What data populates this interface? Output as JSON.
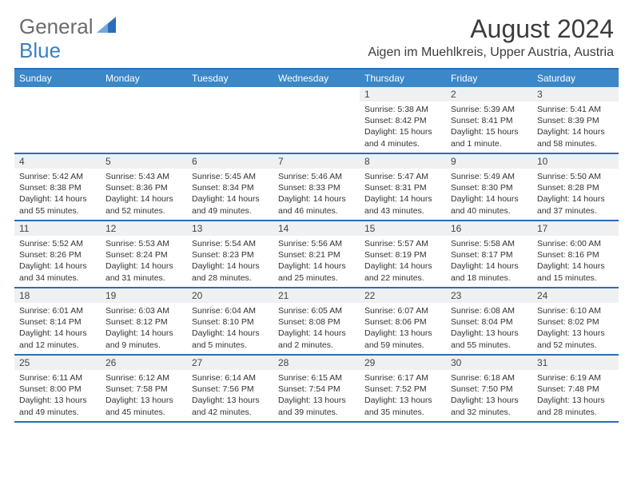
{
  "logo": {
    "text1": "General",
    "text2": "Blue",
    "color1": "#6a6d70",
    "color2": "#3b7fc4",
    "shape_color": "#2b6db8"
  },
  "title": "August 2024",
  "location": "Aigen im Muehlkreis, Upper Austria, Austria",
  "colors": {
    "header_bg": "#3b87c8",
    "header_text": "#ffffff",
    "border": "#2b6db8",
    "daynum_bg": "#eef0f2",
    "body_text": "#333333"
  },
  "days_of_week": [
    "Sunday",
    "Monday",
    "Tuesday",
    "Wednesday",
    "Thursday",
    "Friday",
    "Saturday"
  ],
  "weeks": [
    [
      {
        "n": "",
        "sunrise": "",
        "sunset": "",
        "daylight": ""
      },
      {
        "n": "",
        "sunrise": "",
        "sunset": "",
        "daylight": ""
      },
      {
        "n": "",
        "sunrise": "",
        "sunset": "",
        "daylight": ""
      },
      {
        "n": "",
        "sunrise": "",
        "sunset": "",
        "daylight": ""
      },
      {
        "n": "1",
        "sunrise": "Sunrise: 5:38 AM",
        "sunset": "Sunset: 8:42 PM",
        "daylight": "Daylight: 15 hours and 4 minutes."
      },
      {
        "n": "2",
        "sunrise": "Sunrise: 5:39 AM",
        "sunset": "Sunset: 8:41 PM",
        "daylight": "Daylight: 15 hours and 1 minute."
      },
      {
        "n": "3",
        "sunrise": "Sunrise: 5:41 AM",
        "sunset": "Sunset: 8:39 PM",
        "daylight": "Daylight: 14 hours and 58 minutes."
      }
    ],
    [
      {
        "n": "4",
        "sunrise": "Sunrise: 5:42 AM",
        "sunset": "Sunset: 8:38 PM",
        "daylight": "Daylight: 14 hours and 55 minutes."
      },
      {
        "n": "5",
        "sunrise": "Sunrise: 5:43 AM",
        "sunset": "Sunset: 8:36 PM",
        "daylight": "Daylight: 14 hours and 52 minutes."
      },
      {
        "n": "6",
        "sunrise": "Sunrise: 5:45 AM",
        "sunset": "Sunset: 8:34 PM",
        "daylight": "Daylight: 14 hours and 49 minutes."
      },
      {
        "n": "7",
        "sunrise": "Sunrise: 5:46 AM",
        "sunset": "Sunset: 8:33 PM",
        "daylight": "Daylight: 14 hours and 46 minutes."
      },
      {
        "n": "8",
        "sunrise": "Sunrise: 5:47 AM",
        "sunset": "Sunset: 8:31 PM",
        "daylight": "Daylight: 14 hours and 43 minutes."
      },
      {
        "n": "9",
        "sunrise": "Sunrise: 5:49 AM",
        "sunset": "Sunset: 8:30 PM",
        "daylight": "Daylight: 14 hours and 40 minutes."
      },
      {
        "n": "10",
        "sunrise": "Sunrise: 5:50 AM",
        "sunset": "Sunset: 8:28 PM",
        "daylight": "Daylight: 14 hours and 37 minutes."
      }
    ],
    [
      {
        "n": "11",
        "sunrise": "Sunrise: 5:52 AM",
        "sunset": "Sunset: 8:26 PM",
        "daylight": "Daylight: 14 hours and 34 minutes."
      },
      {
        "n": "12",
        "sunrise": "Sunrise: 5:53 AM",
        "sunset": "Sunset: 8:24 PM",
        "daylight": "Daylight: 14 hours and 31 minutes."
      },
      {
        "n": "13",
        "sunrise": "Sunrise: 5:54 AM",
        "sunset": "Sunset: 8:23 PM",
        "daylight": "Daylight: 14 hours and 28 minutes."
      },
      {
        "n": "14",
        "sunrise": "Sunrise: 5:56 AM",
        "sunset": "Sunset: 8:21 PM",
        "daylight": "Daylight: 14 hours and 25 minutes."
      },
      {
        "n": "15",
        "sunrise": "Sunrise: 5:57 AM",
        "sunset": "Sunset: 8:19 PM",
        "daylight": "Daylight: 14 hours and 22 minutes."
      },
      {
        "n": "16",
        "sunrise": "Sunrise: 5:58 AM",
        "sunset": "Sunset: 8:17 PM",
        "daylight": "Daylight: 14 hours and 18 minutes."
      },
      {
        "n": "17",
        "sunrise": "Sunrise: 6:00 AM",
        "sunset": "Sunset: 8:16 PM",
        "daylight": "Daylight: 14 hours and 15 minutes."
      }
    ],
    [
      {
        "n": "18",
        "sunrise": "Sunrise: 6:01 AM",
        "sunset": "Sunset: 8:14 PM",
        "daylight": "Daylight: 14 hours and 12 minutes."
      },
      {
        "n": "19",
        "sunrise": "Sunrise: 6:03 AM",
        "sunset": "Sunset: 8:12 PM",
        "daylight": "Daylight: 14 hours and 9 minutes."
      },
      {
        "n": "20",
        "sunrise": "Sunrise: 6:04 AM",
        "sunset": "Sunset: 8:10 PM",
        "daylight": "Daylight: 14 hours and 5 minutes."
      },
      {
        "n": "21",
        "sunrise": "Sunrise: 6:05 AM",
        "sunset": "Sunset: 8:08 PM",
        "daylight": "Daylight: 14 hours and 2 minutes."
      },
      {
        "n": "22",
        "sunrise": "Sunrise: 6:07 AM",
        "sunset": "Sunset: 8:06 PM",
        "daylight": "Daylight: 13 hours and 59 minutes."
      },
      {
        "n": "23",
        "sunrise": "Sunrise: 6:08 AM",
        "sunset": "Sunset: 8:04 PM",
        "daylight": "Daylight: 13 hours and 55 minutes."
      },
      {
        "n": "24",
        "sunrise": "Sunrise: 6:10 AM",
        "sunset": "Sunset: 8:02 PM",
        "daylight": "Daylight: 13 hours and 52 minutes."
      }
    ],
    [
      {
        "n": "25",
        "sunrise": "Sunrise: 6:11 AM",
        "sunset": "Sunset: 8:00 PM",
        "daylight": "Daylight: 13 hours and 49 minutes."
      },
      {
        "n": "26",
        "sunrise": "Sunrise: 6:12 AM",
        "sunset": "Sunset: 7:58 PM",
        "daylight": "Daylight: 13 hours and 45 minutes."
      },
      {
        "n": "27",
        "sunrise": "Sunrise: 6:14 AM",
        "sunset": "Sunset: 7:56 PM",
        "daylight": "Daylight: 13 hours and 42 minutes."
      },
      {
        "n": "28",
        "sunrise": "Sunrise: 6:15 AM",
        "sunset": "Sunset: 7:54 PM",
        "daylight": "Daylight: 13 hours and 39 minutes."
      },
      {
        "n": "29",
        "sunrise": "Sunrise: 6:17 AM",
        "sunset": "Sunset: 7:52 PM",
        "daylight": "Daylight: 13 hours and 35 minutes."
      },
      {
        "n": "30",
        "sunrise": "Sunrise: 6:18 AM",
        "sunset": "Sunset: 7:50 PM",
        "daylight": "Daylight: 13 hours and 32 minutes."
      },
      {
        "n": "31",
        "sunrise": "Sunrise: 6:19 AM",
        "sunset": "Sunset: 7:48 PM",
        "daylight": "Daylight: 13 hours and 28 minutes."
      }
    ]
  ]
}
